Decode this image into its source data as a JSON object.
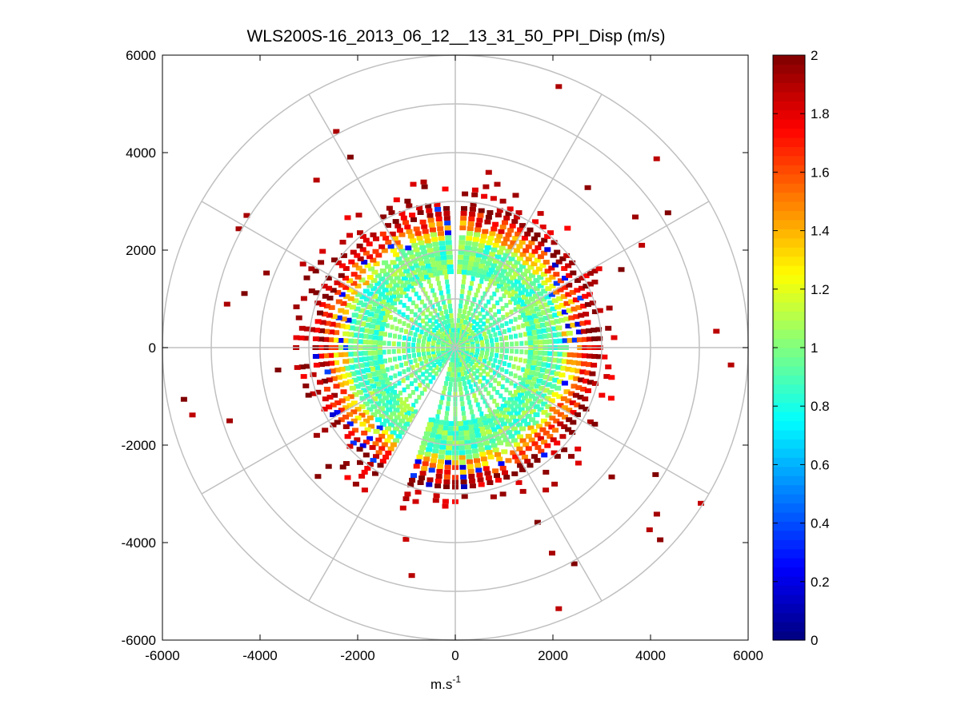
{
  "chart_data": {
    "type": "heatmap",
    "subtype": "polar-ppi",
    "title": "WLS200S-16_2013_06_12__13_31_50_PPI_Disp (m/s)",
    "xlabel": "m.s",
    "xlabel_superscript": "-1",
    "ylabel": "",
    "xlim": [
      -6000,
      6000
    ],
    "ylim": [
      -6000,
      6000
    ],
    "x_ticks": [
      "-6000",
      "-4000",
      "-2000",
      "0",
      "2000",
      "4000",
      "6000"
    ],
    "y_ticks": [
      "6000",
      "4000",
      "2000",
      "0",
      "-2000",
      "-4000",
      "-6000"
    ],
    "polar_grid": {
      "rings_m": [
        1000,
        2000,
        3000,
        4000,
        5000,
        6000
      ],
      "spoke_step_deg": 30,
      "color": "#c0c0c0"
    },
    "colorbar": {
      "min": 0,
      "max": 2,
      "ticks": [
        "2",
        "1.8",
        "1.6",
        "1.4",
        "1.2",
        "1",
        "0.8",
        "0.6",
        "0.4",
        "0.2",
        "0"
      ],
      "colormap": "jet"
    },
    "field": {
      "core_radius_m": 2500,
      "core_value": 0.95,
      "edge_value": 2.0,
      "gaps": [
        {
          "center_az_deg": 0,
          "width_deg": 3
        },
        {
          "center_az_deg": 205,
          "width_deg": 14
        }
      ],
      "outer_scatter_max_m": 6000
    }
  }
}
